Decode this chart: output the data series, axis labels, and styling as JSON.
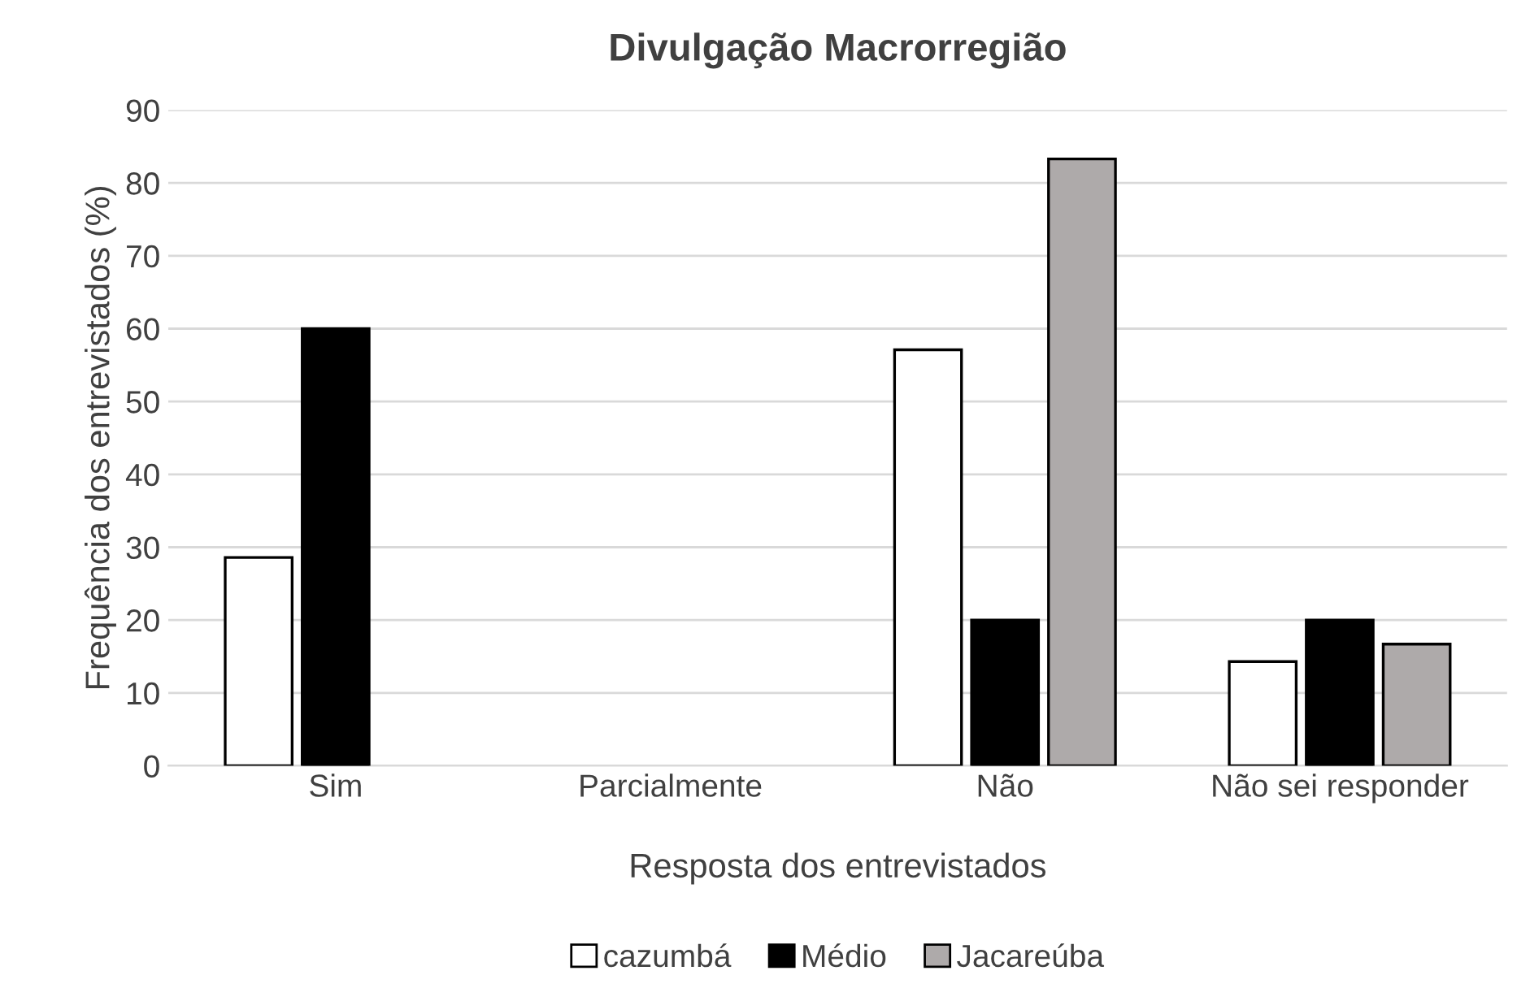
{
  "chart_data": {
    "type": "bar",
    "title": "Divulgação Macrorregião",
    "xlabel": "Resposta dos entrevistados",
    "ylabel": "Frequência dos entrevistados (%)",
    "categories": [
      "Sim",
      "Parcialmente",
      "Não",
      "Não sei responder"
    ],
    "series": [
      {
        "name": "cazumbá",
        "color": "#ffffff",
        "values": [
          28.6,
          0,
          57.1,
          14.3
        ]
      },
      {
        "name": "Médio",
        "color": "#000000",
        "values": [
          60,
          0,
          20,
          20
        ]
      },
      {
        "name": "Jacareúba",
        "color": "#aeaaaa",
        "values": [
          0,
          0,
          83.3,
          16.7
        ]
      }
    ],
    "ylim": [
      0,
      90
    ],
    "yticks": [
      0,
      10,
      20,
      30,
      40,
      50,
      60,
      70,
      80,
      90
    ],
    "grid": "y",
    "legend": "bottom"
  }
}
